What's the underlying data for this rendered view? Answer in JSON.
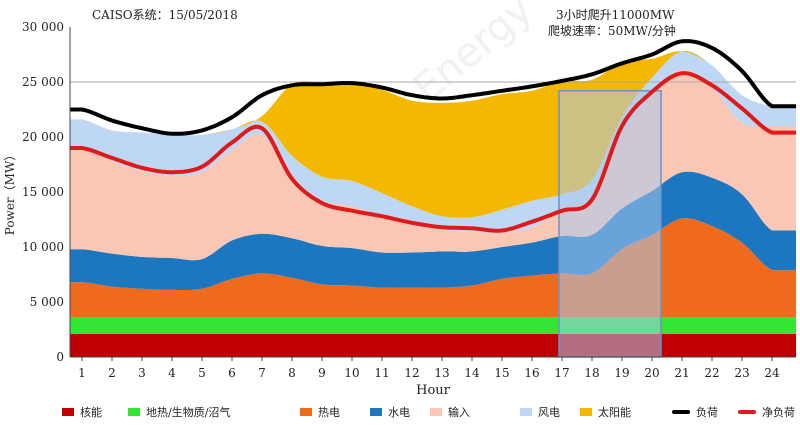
{
  "header": {
    "left_title": "CAISO系统：15/05/2018",
    "ramp_line1": "3小时爬升11000MW",
    "ramp_line2": "爬坡速率：50MW/分钟"
  },
  "watermark": "DeepEnergy",
  "colors": {
    "nuclear": "#c00000",
    "geo": "#33e633",
    "thermal": "#f06a1e",
    "hydro": "#1c77c0",
    "imports": "#f9c7b3",
    "wind": "#bdd7f4",
    "solar": "#f5b800",
    "load": "#000000",
    "net_load": "#e01a1a",
    "highlight_fill": "#a9c8ec",
    "highlight_stroke": "#6a93c8"
  },
  "chart_data": {
    "type": "area",
    "xlabel": "Hour",
    "ylabel": "Power（MW）",
    "x": [
      1,
      2,
      3,
      4,
      5,
      6,
      7,
      8,
      9,
      10,
      11,
      12,
      13,
      14,
      15,
      16,
      17,
      18,
      19,
      20,
      21,
      22,
      23,
      24
    ],
    "x_ticks": [
      "1",
      "2",
      "3",
      "4",
      "5",
      "6",
      "7",
      "8",
      "9",
      "10",
      "11",
      "12",
      "13",
      "14",
      "15",
      "16",
      "17",
      "18",
      "19",
      "20",
      "21",
      "22",
      "23",
      "24"
    ],
    "xlim": [
      0.6,
      24.8
    ],
    "ylim": [
      0,
      30000
    ],
    "y_ticks": [
      0,
      5000,
      10000,
      15000,
      20000,
      25000,
      30000
    ],
    "y_tick_labels": [
      "0",
      "5 000",
      "10 000",
      "15 000",
      "20 000",
      "25 000",
      "30 000"
    ],
    "reference_line": 25000,
    "highlight_range": [
      16.9,
      20.3
    ],
    "stacked_series": [
      {
        "name": "核能",
        "color_key": "nuclear",
        "values": [
          2100,
          2100,
          2100,
          2100,
          2100,
          2100,
          2100,
          2100,
          2100,
          2100,
          2100,
          2100,
          2100,
          2100,
          2100,
          2100,
          2100,
          2100,
          2100,
          2100,
          2100,
          2100,
          2100,
          2100
        ]
      },
      {
        "name": "地热/生物质/沼气",
        "color_key": "geo",
        "values": [
          1500,
          1500,
          1500,
          1500,
          1500,
          1500,
          1500,
          1500,
          1500,
          1500,
          1500,
          1500,
          1500,
          1500,
          1500,
          1500,
          1500,
          1500,
          1500,
          1500,
          1500,
          1500,
          1500,
          1500
        ]
      },
      {
        "name": "热电",
        "color_key": "thermal",
        "values": [
          3200,
          2800,
          2600,
          2500,
          2600,
          3500,
          4000,
          3600,
          3000,
          2900,
          2700,
          2700,
          2700,
          2900,
          3500,
          3800,
          4000,
          4000,
          6200,
          7500,
          9000,
          8300,
          6800,
          4300
        ]
      },
      {
        "name": "水电",
        "color_key": "hydro",
        "values": [
          3000,
          3000,
          2900,
          2900,
          2700,
          3500,
          3600,
          3600,
          3500,
          3400,
          3200,
          3200,
          3300,
          3100,
          2900,
          3000,
          3400,
          3500,
          3700,
          4000,
          4200,
          4400,
          4400,
          3600
        ]
      },
      {
        "name": "输入",
        "color_key": "imports",
        "values": [
          9200,
          8400,
          7800,
          7500,
          7900,
          8200,
          9000,
          5300,
          4100,
          3800,
          3300,
          2900,
          2000,
          1800,
          1300,
          1400,
          2300,
          3500,
          6800,
          8800,
          9300,
          8200,
          6500,
          9500
        ]
      },
      {
        "name": "风电",
        "color_key": "wind",
        "values": [
          2600,
          2800,
          3500,
          3700,
          3400,
          1900,
          1200,
          2200,
          2200,
          2300,
          2100,
          1300,
          1200,
          1300,
          2100,
          2400,
          1500,
          1500,
          1500,
          1500,
          1700,
          2000,
          2500,
          1800
        ]
      },
      {
        "name": "太阳能",
        "color_key": "solar",
        "values": [
          0,
          0,
          0,
          0,
          0,
          0,
          500,
          6500,
          8600,
          9000,
          9400,
          9600,
          10300,
          10600,
          10500,
          10000,
          10300,
          9100,
          5000,
          1700,
          0,
          0,
          0,
          0
        ]
      }
    ],
    "line_series": [
      {
        "name": "负荷",
        "color_key": "load",
        "values": [
          22500,
          21500,
          20800,
          20300,
          20600,
          21800,
          23800,
          24700,
          24800,
          24900,
          24500,
          23800,
          23500,
          23800,
          24200,
          24600,
          25100,
          25700,
          26700,
          27500,
          28700,
          28100,
          26000,
          22800
        ]
      },
      {
        "name": "净负荷",
        "color_key": "net_load",
        "values": [
          19000,
          18100,
          17200,
          16800,
          17300,
          19500,
          20800,
          16200,
          14000,
          13300,
          12800,
          12200,
          11800,
          11700,
          11500,
          12300,
          13300,
          14300,
          21000,
          24100,
          25800,
          24700,
          22600,
          20400
        ]
      }
    ]
  }
}
